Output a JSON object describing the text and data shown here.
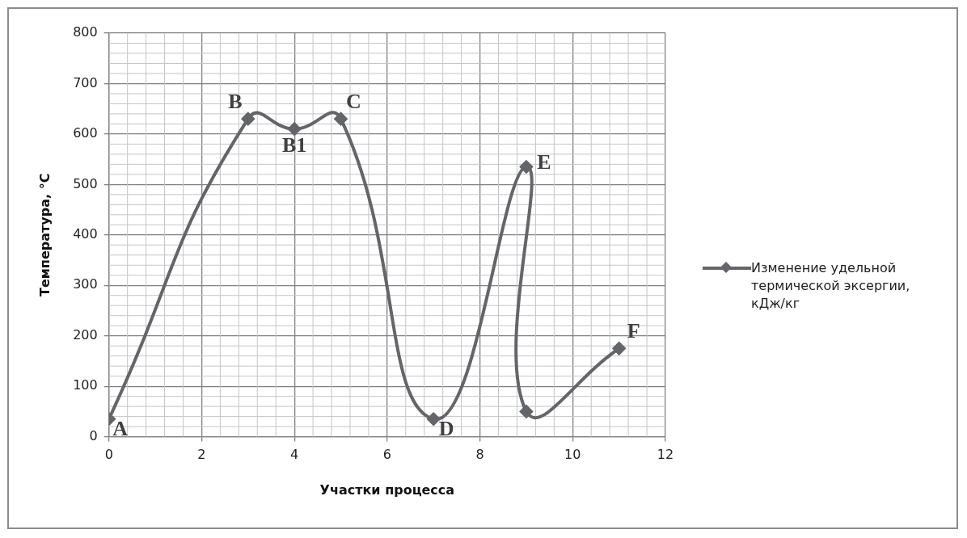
{
  "chart_data": {
    "type": "line",
    "xlabel": "Участки процесса",
    "ylabel": "Температура, °C",
    "series": [
      {
        "name": "Изменение удельной термической эксергии, кДж/кг",
        "color": "#646569",
        "x": [
          0,
          3,
          4,
          5,
          7,
          9,
          9,
          11
        ],
        "values": [
          35,
          630,
          610,
          630,
          35,
          535,
          50,
          175
        ]
      }
    ],
    "xlim": [
      0,
      12
    ],
    "xticks": [
      0,
      2,
      4,
      6,
      8,
      10,
      12
    ],
    "ylim": [
      0,
      800
    ],
    "yticks": [
      0,
      100,
      200,
      300,
      400,
      500,
      600,
      700,
      800
    ],
    "grid": true,
    "legend": "right",
    "marker": "diamond",
    "line_style": "solid",
    "annotations": [
      {
        "text": "A",
        "x": 0,
        "y": 35
      },
      {
        "text": "B",
        "x": 3,
        "y": 630
      },
      {
        "text": "B1",
        "x": 4,
        "y": 610
      },
      {
        "text": "C",
        "x": 5,
        "y": 630
      },
      {
        "text": "D",
        "x": 7,
        "y": 35
      },
      {
        "text": "E",
        "x": 9,
        "y": 535
      },
      {
        "text": "F",
        "x": 11,
        "y": 175
      }
    ]
  }
}
